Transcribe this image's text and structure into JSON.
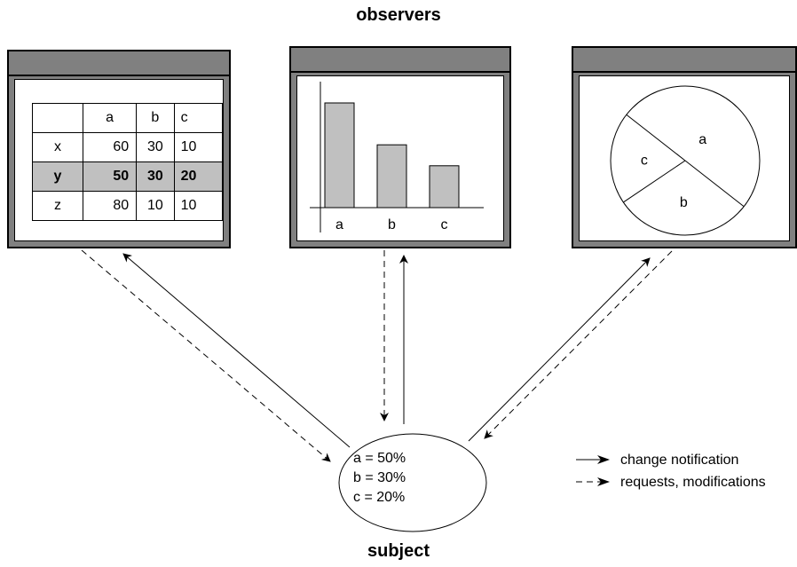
{
  "observers_title": "observers",
  "subject_title": "subject",
  "table": {
    "headers": [
      "",
      "a",
      "b",
      "c"
    ],
    "rows": [
      {
        "label": "x",
        "a": "60",
        "b": "30",
        "c": "10",
        "highlighted": false
      },
      {
        "label": "y",
        "a": "50",
        "b": "30",
        "c": "20",
        "highlighted": true
      },
      {
        "label": "z",
        "a": "80",
        "b": "10",
        "c": "10",
        "highlighted": false
      }
    ]
  },
  "bar_chart": {
    "categories": [
      "a",
      "b",
      "c"
    ],
    "values": [
      50,
      30,
      20
    ]
  },
  "pie_chart": {
    "labels": [
      "a",
      "b",
      "c"
    ],
    "values": [
      50,
      30,
      20
    ]
  },
  "subject": {
    "lines": [
      "a = 50%",
      "b = 30%",
      "c = 20%"
    ]
  },
  "legend": {
    "solid_label": "change notification",
    "dashed_label": "requests, modifications"
  },
  "colors": {
    "window_frame": "#808080",
    "highlight_row": "#c0c0c0",
    "bar_fill": "#c0c0c0"
  }
}
